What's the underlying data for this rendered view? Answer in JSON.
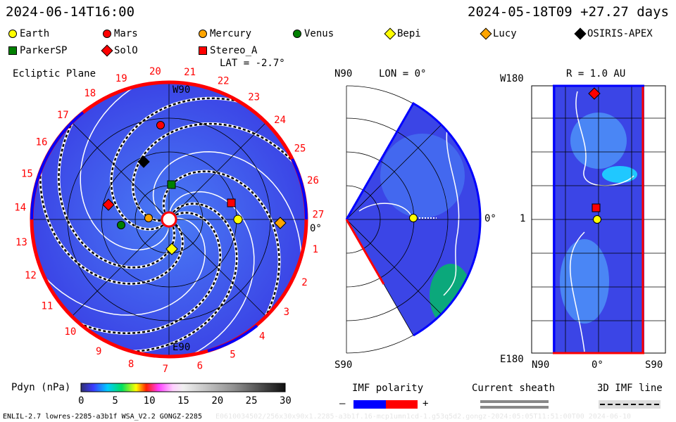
{
  "header": {
    "datetime": "2024-06-14T16:00",
    "reference": "2024-05-18T09 +27.27 days"
  },
  "legend": [
    {
      "name": "Earth",
      "shape": "circle",
      "color": "#ffff00"
    },
    {
      "name": "Mars",
      "shape": "circle",
      "color": "#ff0000"
    },
    {
      "name": "Mercury",
      "shape": "circle",
      "color": "#ffa500"
    },
    {
      "name": "Venus",
      "shape": "circle",
      "color": "#008000"
    },
    {
      "name": "Bepi",
      "shape": "diamond",
      "color": "#ffff00"
    },
    {
      "name": "Lucy",
      "shape": "diamond",
      "color": "#ffa500"
    },
    {
      "name": "OSIRIS-APEX",
      "shape": "diamond",
      "color": "#000000"
    },
    {
      "name": "ParkerSP",
      "shape": "square",
      "color": "#008000"
    },
    {
      "name": "SolO",
      "shape": "diamond",
      "color": "#ff0000"
    },
    {
      "name": "Stereo_A",
      "shape": "square",
      "color": "#ff0000"
    }
  ],
  "ecliptic": {
    "title": "Ecliptic Plane",
    "lat": "LAT = -2.7°",
    "top": "W90",
    "bottom": "E90",
    "right": "0°",
    "rotation_labels": [
      "1",
      "2",
      "3",
      "4",
      "5",
      "6",
      "7",
      "8",
      "9",
      "10",
      "11",
      "12",
      "13",
      "14",
      "15",
      "16",
      "17",
      "18",
      "19",
      "20",
      "21",
      "22",
      "23",
      "24",
      "25",
      "26",
      "27"
    ]
  },
  "meridional": {
    "top": "N90",
    "bottom": "S90",
    "lon": "LON = 0°",
    "right": "0°"
  },
  "radial": {
    "title": "R = 1.0 AU",
    "top_left": "W180",
    "mid_left": "1",
    "bottom_left": "E180",
    "x_left": "N90",
    "x_mid": "0°",
    "x_right": "S90"
  },
  "chart_data": {
    "type": "heatmap",
    "title": "Pdyn (nPa)",
    "colorbar": {
      "label": "Pdyn (nPa)",
      "range": [
        0,
        30
      ],
      "ticks": [
        0,
        5,
        10,
        15,
        20,
        25,
        30
      ]
    }
  },
  "keys": {
    "imf_title": "IMF polarity",
    "imf_minus": "–",
    "imf_plus": "+",
    "sheath_title": "Current sheath",
    "line_title": "3D IMF line",
    "colors": {
      "negative": "#0000ff",
      "positive": "#ff0000"
    }
  },
  "footer": {
    "model": "ENLIL-2.7 lowres-2285-a3b1f WSA_V2.2 GONGZ-2285",
    "run": "E0610034502/256x30x90x1.2285-a3b1f.16-mcp1umn1cd-1.g53q5d2.gongz-2024:05:05T11:51:00T00   2024-06-10"
  }
}
